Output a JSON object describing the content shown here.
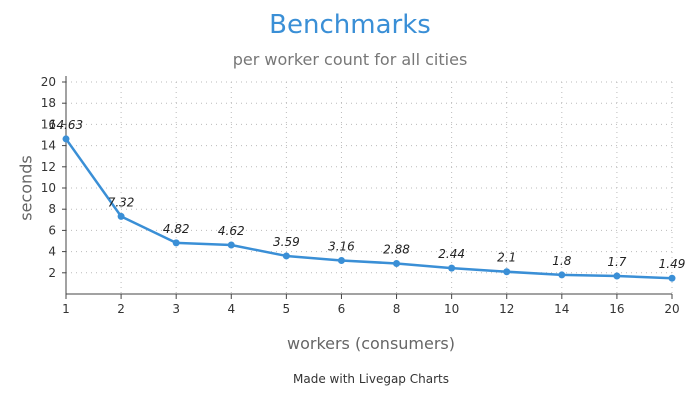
{
  "chart_data": {
    "type": "line",
    "title": "Benchmarks",
    "subtitle": "per worker count for all cities",
    "xlabel": "workers (consumers)",
    "ylabel": "seconds",
    "categories": [
      "1",
      "2",
      "3",
      "4",
      "5",
      "6",
      "8",
      "10",
      "12",
      "14",
      "16",
      "20"
    ],
    "series": [
      {
        "values": [
          14.63,
          7.32,
          4.82,
          4.62,
          3.59,
          3.16,
          2.88,
          2.44,
          2.1,
          1.8,
          1.7,
          1.49
        ]
      }
    ],
    "data_labels": [
      "14.63",
      "7.32",
      "4.82",
      "4.62",
      "3.59",
      "3.16",
      "2.88",
      "2.44",
      "2.1",
      "1.8",
      "1.7",
      "1.49"
    ],
    "y_ticks": [
      "2",
      "4",
      "6",
      "8",
      "10",
      "12",
      "14",
      "16",
      "18",
      "20"
    ],
    "ylim": [
      0,
      20
    ],
    "grid": true,
    "colors": {
      "line": "#3a8fd6",
      "title": "#3a8fd6"
    }
  },
  "footer": {
    "credit": "Made with Livegap Charts"
  }
}
